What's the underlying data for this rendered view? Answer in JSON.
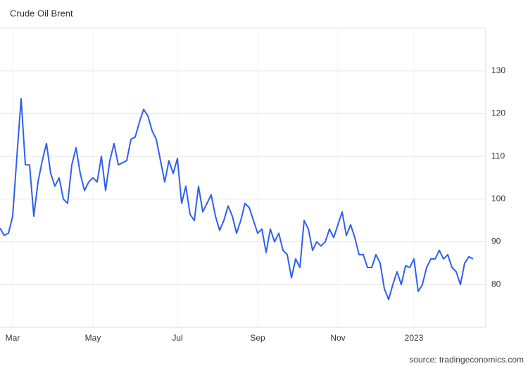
{
  "chart_data": {
    "type": "line",
    "title": "Crude Oil Brent",
    "source": "source: tradingeconomics.com",
    "categories": [
      null,
      null,
      null,
      "Mar",
      null,
      null,
      null,
      null,
      null,
      null,
      null,
      null,
      null,
      null,
      null,
      null,
      null,
      null,
      null,
      null,
      null,
      null,
      "May",
      null,
      null,
      null,
      null,
      null,
      null,
      null,
      null,
      null,
      null,
      null,
      null,
      null,
      null,
      null,
      null,
      null,
      null,
      null,
      "Jul",
      null,
      null,
      null,
      null,
      null,
      null,
      null,
      null,
      null,
      null,
      null,
      null,
      null,
      null,
      null,
      null,
      null,
      null,
      "Sep",
      null,
      null,
      null,
      null,
      null,
      null,
      null,
      null,
      null,
      null,
      null,
      null,
      null,
      null,
      null,
      null,
      null,
      null,
      "Nov",
      null,
      null,
      null,
      null,
      null,
      null,
      null,
      null,
      null,
      null,
      null,
      null,
      null,
      null,
      null,
      null,
      null,
      "2023",
      null,
      null,
      null,
      null,
      null,
      null,
      null,
      null,
      null,
      null,
      null,
      null,
      null,
      null
    ],
    "series": [
      {
        "name": "Crude Oil Brent",
        "color": "#2f5ff0",
        "values": [
          93.2,
          91.5,
          92,
          96,
          110,
          123.5,
          108,
          108,
          96,
          104,
          109,
          113,
          106,
          103,
          105,
          100,
          99,
          108,
          112,
          106,
          102,
          104,
          105,
          104,
          110,
          102,
          109,
          113,
          108,
          108.5,
          109,
          114,
          114.5,
          118,
          121,
          119.5,
          116,
          114,
          109,
          104,
          109,
          106,
          109.5,
          99,
          103,
          96.4,
          95,
          103,
          97,
          99,
          101,
          96,
          92.7,
          95,
          98.4,
          96,
          92,
          95,
          99,
          98,
          95,
          92,
          93,
          87.5,
          93,
          90,
          92,
          88,
          87,
          81.6,
          86,
          84,
          95,
          93,
          88,
          90,
          89,
          90,
          93,
          91,
          94,
          97,
          91.5,
          94,
          91,
          87,
          87,
          84,
          84,
          87,
          85,
          79,
          76.5,
          80,
          83,
          80,
          84.4,
          84,
          86,
          78.4,
          80,
          84,
          86,
          86,
          88,
          86,
          87,
          84,
          83,
          80,
          85,
          86.5,
          86
        ]
      }
    ],
    "ylim": [
      70,
      140
    ],
    "yticks": [
      80,
      90,
      100,
      110,
      120,
      130
    ],
    "grid": true
  }
}
